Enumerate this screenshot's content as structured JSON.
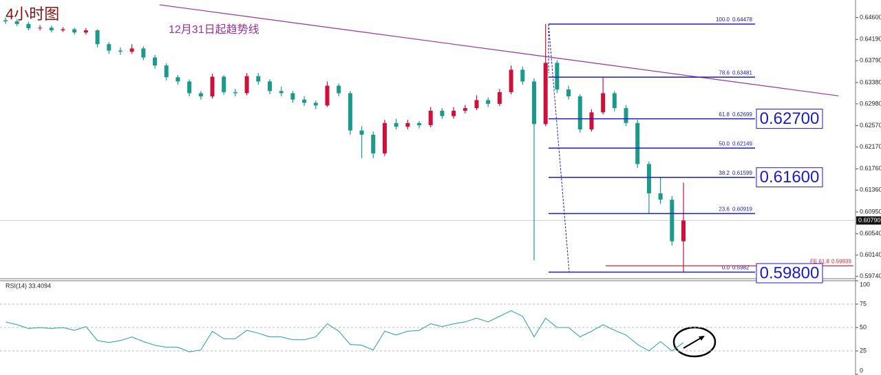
{
  "chart_data": {
    "type": "candlestick",
    "title": "4小时图",
    "trendline": {
      "label": "12月31日起趋势线",
      "color": "#9b30a0",
      "from": [
        13.4,
        0.6484
      ],
      "to": [
        72.5,
        0.6313
      ]
    },
    "colors": {
      "up": "#d0103a",
      "down": "#1a9a8a"
    },
    "ylim": [
      0.5971,
      0.6493
    ],
    "yticks": [
      {
        "value": 0.646,
        "label": "0.64600"
      },
      {
        "value": 0.6419,
        "label": "0.64190"
      },
      {
        "value": 0.6379,
        "label": "0.63790"
      },
      {
        "value": 0.6338,
        "label": "0.63380"
      },
      {
        "value": 0.6298,
        "label": "0.62980"
      },
      {
        "value": 0.6257,
        "label": "0.62570"
      },
      {
        "value": 0.6217,
        "label": "0.62170"
      },
      {
        "value": 0.6176,
        "label": "0.61760"
      },
      {
        "value": 0.6136,
        "label": "0.61360"
      },
      {
        "value": 0.6095,
        "label": "0.60950"
      },
      {
        "value": 0.6054,
        "label": "0.60540"
      },
      {
        "value": 0.6014,
        "label": "0.60140"
      },
      {
        "value": 0.5974,
        "label": "0.59740"
      }
    ],
    "current_price": {
      "value": 0.6079,
      "label": "0.60790"
    },
    "candles": [
      [
        0.6455,
        0.646,
        0.6448,
        0.6453
      ],
      [
        0.6453,
        0.6457,
        0.6444,
        0.6448
      ],
      [
        0.6448,
        0.6452,
        0.6436,
        0.644
      ],
      [
        0.644,
        0.6446,
        0.6436,
        0.6441
      ],
      [
        0.6441,
        0.6445,
        0.6432,
        0.6436
      ],
      [
        0.6436,
        0.6442,
        0.6433,
        0.6438
      ],
      [
        0.6438,
        0.6441,
        0.6428,
        0.6432
      ],
      [
        0.6432,
        0.644,
        0.6428,
        0.6436
      ],
      [
        0.6436,
        0.6438,
        0.6404,
        0.641
      ],
      [
        0.641,
        0.6414,
        0.6392,
        0.6398
      ],
      [
        0.6398,
        0.6404,
        0.639,
        0.6396
      ],
      [
        0.6396,
        0.641,
        0.6392,
        0.6402
      ],
      [
        0.6402,
        0.6406,
        0.638,
        0.6385
      ],
      [
        0.6385,
        0.639,
        0.6364,
        0.637
      ],
      [
        0.637,
        0.6374,
        0.6342,
        0.6348
      ],
      [
        0.6348,
        0.6352,
        0.6334,
        0.634
      ],
      [
        0.634,
        0.6344,
        0.6312,
        0.6318
      ],
      [
        0.6318,
        0.6322,
        0.6306,
        0.6312
      ],
      [
        0.6312,
        0.6355,
        0.6308,
        0.6349
      ],
      [
        0.6349,
        0.6352,
        0.6315,
        0.632
      ],
      [
        0.632,
        0.6326,
        0.6312,
        0.6318
      ],
      [
        0.6318,
        0.6356,
        0.6314,
        0.635
      ],
      [
        0.635,
        0.6356,
        0.6334,
        0.634
      ],
      [
        0.634,
        0.6344,
        0.6316,
        0.6322
      ],
      [
        0.6322,
        0.633,
        0.6312,
        0.6318
      ],
      [
        0.6318,
        0.6322,
        0.63,
        0.6306
      ],
      [
        0.6306,
        0.6312,
        0.6294,
        0.63
      ],
      [
        0.63,
        0.6304,
        0.6288,
        0.6295
      ],
      [
        0.6295,
        0.634,
        0.6292,
        0.6332
      ],
      [
        0.6332,
        0.6336,
        0.6312,
        0.6318
      ],
      [
        0.6318,
        0.6322,
        0.624,
        0.6248
      ],
      [
        0.6248,
        0.6256,
        0.6196,
        0.624
      ],
      [
        0.624,
        0.6246,
        0.6196,
        0.6205
      ],
      [
        0.6205,
        0.6268,
        0.62,
        0.6262
      ],
      [
        0.6262,
        0.627,
        0.625,
        0.6255
      ],
      [
        0.6255,
        0.6268,
        0.625,
        0.6262
      ],
      [
        0.6262,
        0.6266,
        0.6252,
        0.6258
      ],
      [
        0.6258,
        0.6292,
        0.6254,
        0.6285
      ],
      [
        0.6285,
        0.629,
        0.627,
        0.6275
      ],
      [
        0.6275,
        0.6292,
        0.627,
        0.6285
      ],
      [
        0.6285,
        0.6296,
        0.628,
        0.629
      ],
      [
        0.629,
        0.6314,
        0.6286,
        0.6305
      ],
      [
        0.6305,
        0.631,
        0.6292,
        0.6298
      ],
      [
        0.6298,
        0.6326,
        0.6294,
        0.632
      ],
      [
        0.632,
        0.637,
        0.6316,
        0.6362
      ],
      [
        0.6362,
        0.6368,
        0.6334,
        0.634
      ],
      [
        0.634,
        0.6346,
        0.6004,
        0.626
      ],
      [
        0.626,
        0.6448,
        0.6256,
        0.6375
      ],
      [
        0.6375,
        0.638,
        0.6318,
        0.6325
      ],
      [
        0.6325,
        0.6332,
        0.6306,
        0.6312
      ],
      [
        0.6312,
        0.6316,
        0.6244,
        0.625
      ],
      [
        0.625,
        0.6288,
        0.6246,
        0.6282
      ],
      [
        0.6282,
        0.6348,
        0.6278,
        0.6318
      ],
      [
        0.6318,
        0.6322,
        0.6284,
        0.629
      ],
      [
        0.629,
        0.6296,
        0.6256,
        0.6262
      ],
      [
        0.6262,
        0.6268,
        0.6178,
        0.6185
      ],
      [
        0.6185,
        0.619,
        0.6092,
        0.613
      ],
      [
        0.613,
        0.616,
        0.611,
        0.6118
      ],
      [
        0.6118,
        0.6125,
        0.6032,
        0.604
      ],
      [
        0.604,
        0.615,
        0.5982,
        0.6079
      ]
    ],
    "fib_levels": [
      {
        "ratio": "100.0",
        "price": 0.64478
      },
      {
        "ratio": "78.6",
        "price": 0.63481
      },
      {
        "ratio": "61.8",
        "price": 0.62699
      },
      {
        "ratio": "50.0",
        "price": 0.62149
      },
      {
        "ratio": "38.2",
        "price": 0.61599
      },
      {
        "ratio": "23.6",
        "price": 0.60919
      },
      {
        "ratio": "0.0",
        "price": 0.5982
      }
    ],
    "fib_color": "#1a1ad0",
    "fe_level": {
      "ratio": "FE 61.8",
      "price": 0.59939,
      "color": "#e0203a"
    },
    "key_levels": [
      {
        "value": 0.627,
        "label": "0.62700"
      },
      {
        "value": 0.616,
        "label": "0.61600"
      },
      {
        "value": 0.598,
        "label": "0.59800"
      }
    ],
    "rsi": {
      "label": "RSI(14) 33.4094",
      "color": "#20a0a0",
      "ylim": [
        0,
        100
      ],
      "yticks": [
        0,
        25,
        50,
        75,
        100
      ],
      "grid_levels": [
        25,
        50,
        75
      ],
      "values": [
        56,
        53,
        49,
        50,
        49,
        50,
        47,
        51,
        36,
        34,
        36,
        40,
        35,
        31,
        29,
        29,
        24,
        26,
        46,
        38,
        38,
        47,
        44,
        40,
        40,
        37,
        37,
        40,
        54,
        46,
        32,
        31,
        26,
        46,
        42,
        46,
        47,
        54,
        51,
        54,
        56,
        60,
        56,
        62,
        68,
        62,
        40,
        60,
        50,
        50,
        40,
        46,
        53,
        47,
        42,
        32,
        25,
        35,
        25,
        34
      ]
    }
  }
}
